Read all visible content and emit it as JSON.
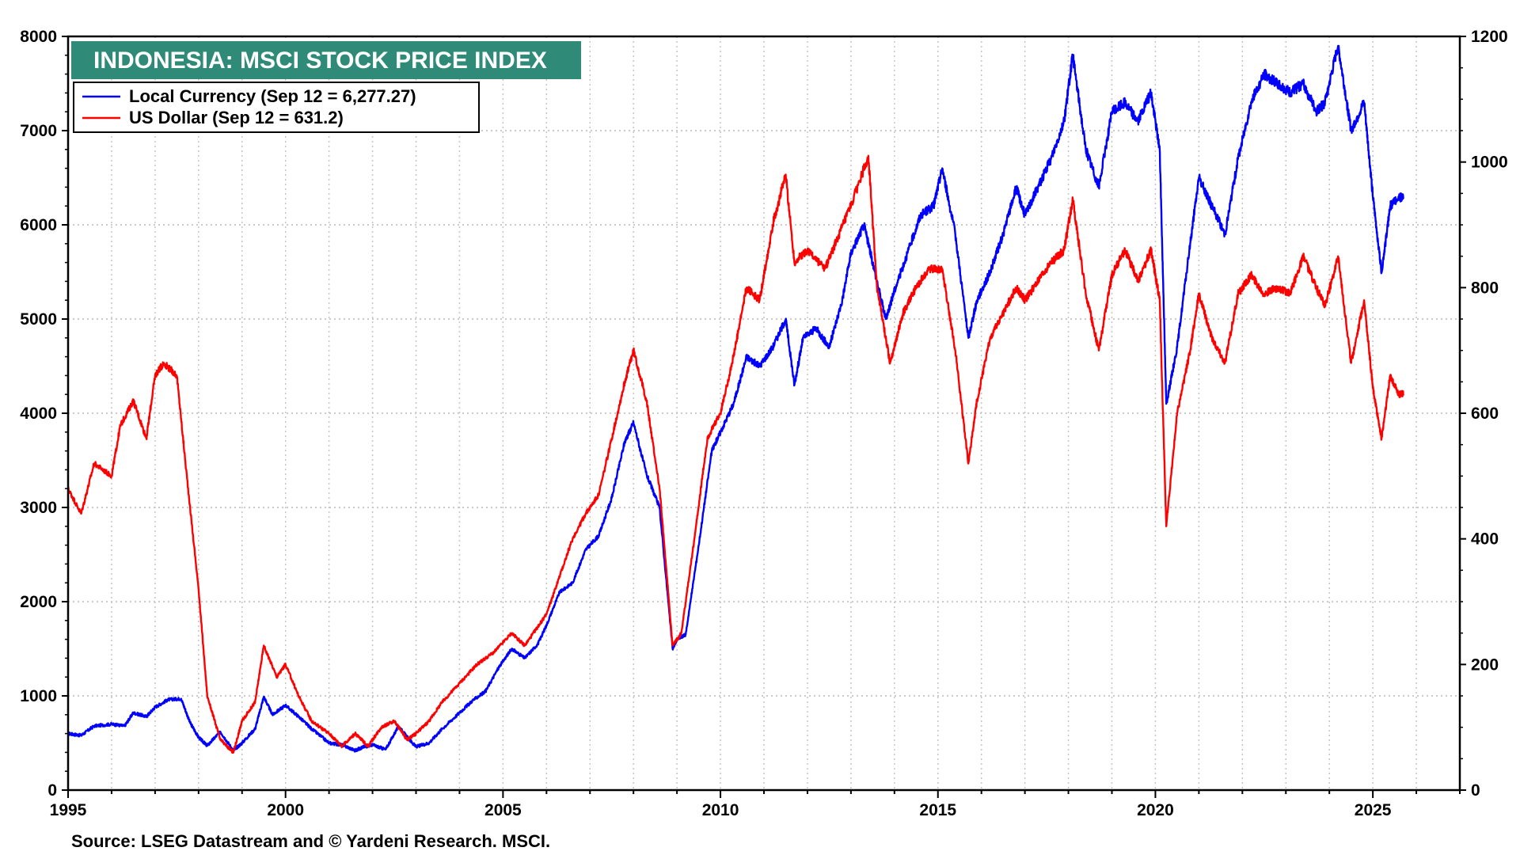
{
  "chart_data": {
    "type": "line",
    "title": "INDONESIA: MSCI STOCK PRICE INDEX",
    "source": "Source: LSEG Datastream and © Yardeni Research. MSCI.",
    "xlabel": "",
    "ylabel_left": "",
    "ylabel_right": "",
    "x_ticks": [
      "1995",
      "2000",
      "2005",
      "2010",
      "2015",
      "2020",
      "2025"
    ],
    "x_tick_years": [
      1995,
      2000,
      2005,
      2010,
      2015,
      2020,
      2025
    ],
    "xlim": [
      1995,
      2027
    ],
    "left_ticks": [
      "0",
      "1000",
      "2000",
      "3000",
      "4000",
      "5000",
      "6000",
      "7000",
      "8000"
    ],
    "left_tick_values": [
      0,
      1000,
      2000,
      3000,
      4000,
      5000,
      6000,
      7000,
      8000
    ],
    "ylim_left": [
      0,
      8000
    ],
    "right_ticks": [
      "0",
      "200",
      "400",
      "600",
      "800",
      "1000",
      "1200"
    ],
    "right_tick_values": [
      0,
      200,
      400,
      600,
      800,
      1000,
      1200
    ],
    "ylim_right": [
      0,
      1200
    ],
    "grid": true,
    "legend_position": "top-left",
    "series": [
      {
        "name": "Local Currency (Sep 12 = 6,277.27)",
        "axis": "left",
        "color": "#0000ff",
        "points": [
          [
            1995.0,
            600
          ],
          [
            1995.3,
            580
          ],
          [
            1995.6,
            680
          ],
          [
            1996.0,
            700
          ],
          [
            1996.3,
            680
          ],
          [
            1996.5,
            820
          ],
          [
            1996.8,
            780
          ],
          [
            1997.0,
            880
          ],
          [
            1997.3,
            960
          ],
          [
            1997.6,
            970
          ],
          [
            1997.8,
            720
          ],
          [
            1998.0,
            560
          ],
          [
            1998.2,
            470
          ],
          [
            1998.5,
            620
          ],
          [
            1998.8,
            420
          ],
          [
            1999.0,
            500
          ],
          [
            1999.3,
            650
          ],
          [
            1999.5,
            990
          ],
          [
            1999.7,
            800
          ],
          [
            2000.0,
            900
          ],
          [
            2000.3,
            780
          ],
          [
            2000.6,
            650
          ],
          [
            2001.0,
            500
          ],
          [
            2001.3,
            480
          ],
          [
            2001.6,
            420
          ],
          [
            2001.8,
            460
          ],
          [
            2002.0,
            480
          ],
          [
            2002.3,
            430
          ],
          [
            2002.6,
            680
          ],
          [
            2002.8,
            560
          ],
          [
            2003.0,
            460
          ],
          [
            2003.3,
            500
          ],
          [
            2003.6,
            650
          ],
          [
            2004.0,
            820
          ],
          [
            2004.3,
            950
          ],
          [
            2004.6,
            1050
          ],
          [
            2004.9,
            1300
          ],
          [
            2005.2,
            1500
          ],
          [
            2005.5,
            1400
          ],
          [
            2005.8,
            1550
          ],
          [
            2006.0,
            1750
          ],
          [
            2006.3,
            2100
          ],
          [
            2006.6,
            2200
          ],
          [
            2006.9,
            2550
          ],
          [
            2007.2,
            2700
          ],
          [
            2007.5,
            3100
          ],
          [
            2007.8,
            3700
          ],
          [
            2008.0,
            3900
          ],
          [
            2008.3,
            3350
          ],
          [
            2008.6,
            3000
          ],
          [
            2008.9,
            1500
          ],
          [
            2009.0,
            1600
          ],
          [
            2009.2,
            1650
          ],
          [
            2009.5,
            2600
          ],
          [
            2009.8,
            3600
          ],
          [
            2010.0,
            3800
          ],
          [
            2010.3,
            4100
          ],
          [
            2010.6,
            4600
          ],
          [
            2010.9,
            4500
          ],
          [
            2011.2,
            4700
          ],
          [
            2011.5,
            5000
          ],
          [
            2011.7,
            4300
          ],
          [
            2011.9,
            4800
          ],
          [
            2012.2,
            4900
          ],
          [
            2012.5,
            4700
          ],
          [
            2012.8,
            5200
          ],
          [
            2013.0,
            5700
          ],
          [
            2013.3,
            6000
          ],
          [
            2013.5,
            5600
          ],
          [
            2013.8,
            5000
          ],
          [
            2014.0,
            5300
          ],
          [
            2014.3,
            5700
          ],
          [
            2014.6,
            6100
          ],
          [
            2014.9,
            6200
          ],
          [
            2015.1,
            6600
          ],
          [
            2015.4,
            5900
          ],
          [
            2015.7,
            4800
          ],
          [
            2015.9,
            5200
          ],
          [
            2016.2,
            5500
          ],
          [
            2016.5,
            5900
          ],
          [
            2016.8,
            6400
          ],
          [
            2017.0,
            6100
          ],
          [
            2017.3,
            6400
          ],
          [
            2017.6,
            6700
          ],
          [
            2017.9,
            7100
          ],
          [
            2018.1,
            7800
          ],
          [
            2018.4,
            6800
          ],
          [
            2018.7,
            6400
          ],
          [
            2019.0,
            7200
          ],
          [
            2019.3,
            7300
          ],
          [
            2019.6,
            7100
          ],
          [
            2019.9,
            7400
          ],
          [
            2020.1,
            6800
          ],
          [
            2020.25,
            4100
          ],
          [
            2020.5,
            4700
          ],
          [
            2020.8,
            5800
          ],
          [
            2021.0,
            6500
          ],
          [
            2021.3,
            6200
          ],
          [
            2021.6,
            5900
          ],
          [
            2021.9,
            6700
          ],
          [
            2022.2,
            7300
          ],
          [
            2022.5,
            7600
          ],
          [
            2022.8,
            7500
          ],
          [
            2023.1,
            7400
          ],
          [
            2023.4,
            7500
          ],
          [
            2023.7,
            7200
          ],
          [
            2023.9,
            7300
          ],
          [
            2024.2,
            7900
          ],
          [
            2024.5,
            7000
          ],
          [
            2024.8,
            7300
          ],
          [
            2025.0,
            6300
          ],
          [
            2025.2,
            5500
          ],
          [
            2025.4,
            6200
          ],
          [
            2025.6,
            6300
          ],
          [
            2025.7,
            6277
          ]
        ]
      },
      {
        "name": "US Dollar (Sep 12 = 631.2)",
        "axis": "right",
        "color": "#ff0000",
        "points": [
          [
            1995.0,
            480
          ],
          [
            1995.3,
            440
          ],
          [
            1995.6,
            520
          ],
          [
            1996.0,
            500
          ],
          [
            1996.2,
            580
          ],
          [
            1996.5,
            620
          ],
          [
            1996.8,
            560
          ],
          [
            1997.0,
            660
          ],
          [
            1997.2,
            680
          ],
          [
            1997.5,
            660
          ],
          [
            1997.7,
            520
          ],
          [
            1998.0,
            320
          ],
          [
            1998.2,
            150
          ],
          [
            1998.5,
            80
          ],
          [
            1998.8,
            60
          ],
          [
            1999.0,
            110
          ],
          [
            1999.3,
            140
          ],
          [
            1999.5,
            230
          ],
          [
            1999.8,
            180
          ],
          [
            2000.0,
            200
          ],
          [
            2000.3,
            150
          ],
          [
            2000.6,
            110
          ],
          [
            2001.0,
            90
          ],
          [
            2001.3,
            70
          ],
          [
            2001.6,
            90
          ],
          [
            2001.9,
            70
          ],
          [
            2002.2,
            100
          ],
          [
            2002.5,
            110
          ],
          [
            2002.8,
            80
          ],
          [
            2003.0,
            90
          ],
          [
            2003.3,
            110
          ],
          [
            2003.6,
            140
          ],
          [
            2004.0,
            170
          ],
          [
            2004.4,
            200
          ],
          [
            2004.8,
            220
          ],
          [
            2005.2,
            250
          ],
          [
            2005.5,
            230
          ],
          [
            2005.8,
            260
          ],
          [
            2006.0,
            280
          ],
          [
            2006.3,
            340
          ],
          [
            2006.6,
            400
          ],
          [
            2006.9,
            440
          ],
          [
            2007.2,
            470
          ],
          [
            2007.5,
            560
          ],
          [
            2007.8,
            650
          ],
          [
            2008.0,
            700
          ],
          [
            2008.3,
            620
          ],
          [
            2008.6,
            480
          ],
          [
            2008.9,
            230
          ],
          [
            2009.1,
            250
          ],
          [
            2009.4,
            400
          ],
          [
            2009.7,
            560
          ],
          [
            2010.0,
            600
          ],
          [
            2010.3,
            690
          ],
          [
            2010.6,
            800
          ],
          [
            2010.9,
            780
          ],
          [
            2011.2,
            900
          ],
          [
            2011.5,
            980
          ],
          [
            2011.7,
            840
          ],
          [
            2012.0,
            860
          ],
          [
            2012.4,
            830
          ],
          [
            2012.7,
            880
          ],
          [
            2013.0,
            930
          ],
          [
            2013.4,
            1010
          ],
          [
            2013.6,
            800
          ],
          [
            2013.9,
            680
          ],
          [
            2014.2,
            760
          ],
          [
            2014.5,
            800
          ],
          [
            2014.8,
            830
          ],
          [
            2015.1,
            830
          ],
          [
            2015.4,
            700
          ],
          [
            2015.7,
            520
          ],
          [
            2015.9,
            620
          ],
          [
            2016.2,
            720
          ],
          [
            2016.5,
            760
          ],
          [
            2016.8,
            800
          ],
          [
            2017.0,
            780
          ],
          [
            2017.3,
            810
          ],
          [
            2017.6,
            840
          ],
          [
            2017.9,
            860
          ],
          [
            2018.1,
            940
          ],
          [
            2018.4,
            790
          ],
          [
            2018.7,
            700
          ],
          [
            2019.0,
            820
          ],
          [
            2019.3,
            860
          ],
          [
            2019.6,
            810
          ],
          [
            2019.9,
            860
          ],
          [
            2020.1,
            780
          ],
          [
            2020.25,
            420
          ],
          [
            2020.5,
            600
          ],
          [
            2020.8,
            700
          ],
          [
            2021.0,
            790
          ],
          [
            2021.3,
            720
          ],
          [
            2021.6,
            680
          ],
          [
            2021.9,
            790
          ],
          [
            2022.2,
            820
          ],
          [
            2022.5,
            790
          ],
          [
            2022.8,
            800
          ],
          [
            2023.1,
            790
          ],
          [
            2023.4,
            850
          ],
          [
            2023.7,
            800
          ],
          [
            2023.9,
            770
          ],
          [
            2024.2,
            850
          ],
          [
            2024.5,
            680
          ],
          [
            2024.8,
            780
          ],
          [
            2025.0,
            640
          ],
          [
            2025.2,
            560
          ],
          [
            2025.4,
            660
          ],
          [
            2025.6,
            630
          ],
          [
            2025.7,
            631.2
          ]
        ]
      }
    ]
  }
}
